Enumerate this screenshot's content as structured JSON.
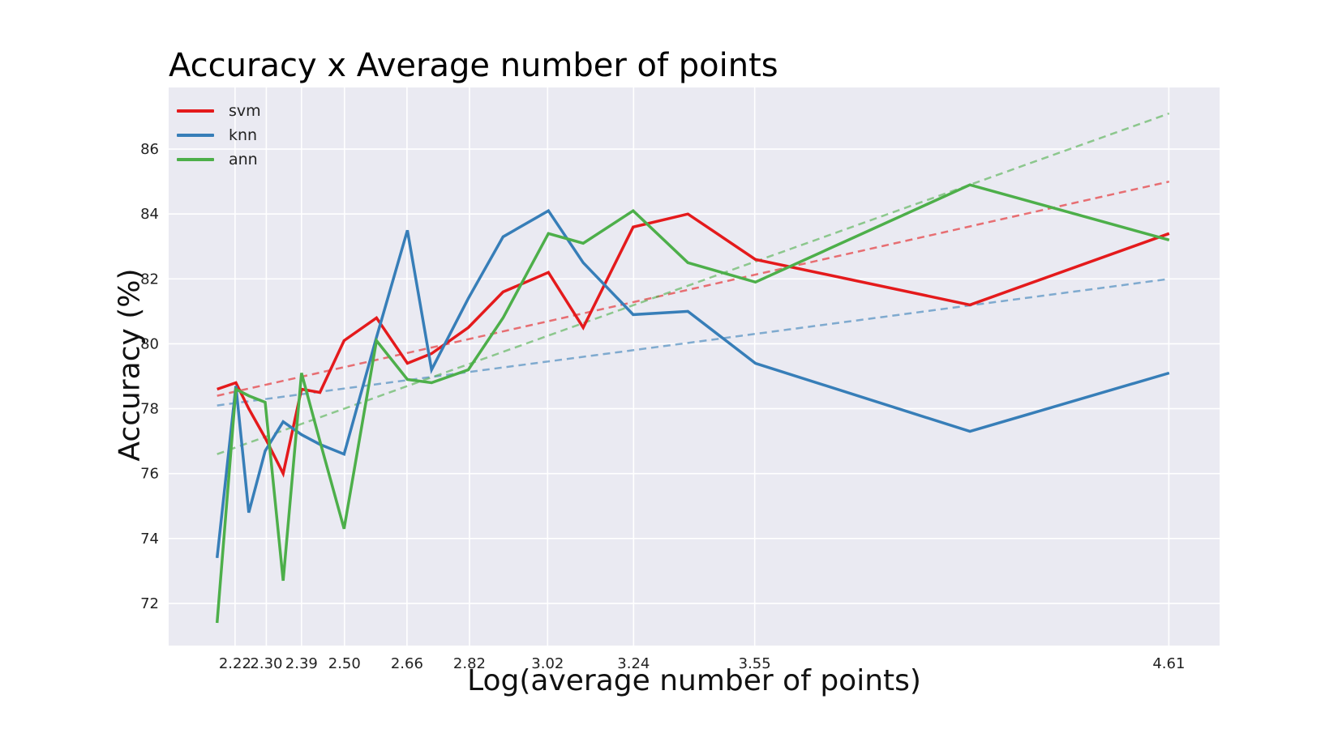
{
  "chart_data": {
    "type": "line",
    "title": "Accuracy x Average number of points",
    "xlabel": "Log(average number of points)",
    "ylabel": "Accuracy (%)",
    "xlim": [
      2.05,
      4.74
    ],
    "ylim": [
      70.7,
      87.9
    ],
    "grid": true,
    "legend_position": "top-left",
    "x_tick_values": [
      2.22,
      2.3,
      2.39,
      2.5,
      2.66,
      2.82,
      3.02,
      3.24,
      3.55,
      4.61
    ],
    "x_tick_labels": [
      "2.22",
      "2.30",
      "2.39",
      "2.50",
      "2.66",
      "2.82",
      "3.02",
      "3.24",
      "3.55",
      "4.61"
    ],
    "y_ticks": [
      72,
      74,
      76,
      78,
      80,
      82,
      84,
      86
    ],
    "x": [
      2.174,
      2.222,
      2.255,
      2.297,
      2.343,
      2.39,
      2.437,
      2.499,
      2.582,
      2.661,
      2.723,
      2.817,
      2.906,
      3.022,
      3.111,
      3.239,
      3.379,
      3.552,
      4.101,
      4.611
    ],
    "series": [
      {
        "name": "svm",
        "color": "#e41a1c",
        "values": [
          78.6,
          78.8,
          78.0,
          77.1,
          76.0,
          78.6,
          78.5,
          80.1,
          80.8,
          79.4,
          79.7,
          80.5,
          81.6,
          82.2,
          80.5,
          83.6,
          84.0,
          82.6,
          81.2,
          83.4
        ],
        "trend": [
          78.4,
          85.0
        ]
      },
      {
        "name": "knn",
        "color": "#377eb8",
        "values": [
          73.4,
          78.7,
          74.8,
          76.7,
          77.6,
          77.2,
          76.9,
          76.6,
          80.2,
          83.5,
          79.2,
          81.4,
          83.3,
          84.1,
          82.5,
          80.9,
          81.0,
          79.4,
          77.3,
          79.1
        ],
        "trend": [
          78.1,
          82.0
        ]
      },
      {
        "name": "ann",
        "color": "#4daf4a",
        "values": [
          71.4,
          78.6,
          78.4,
          78.2,
          72.7,
          79.1,
          77.0,
          74.3,
          80.1,
          78.9,
          78.8,
          79.2,
          80.8,
          83.4,
          83.1,
          84.1,
          82.5,
          81.9,
          84.9,
          83.2
        ],
        "trend": [
          76.6,
          87.1
        ]
      }
    ]
  }
}
